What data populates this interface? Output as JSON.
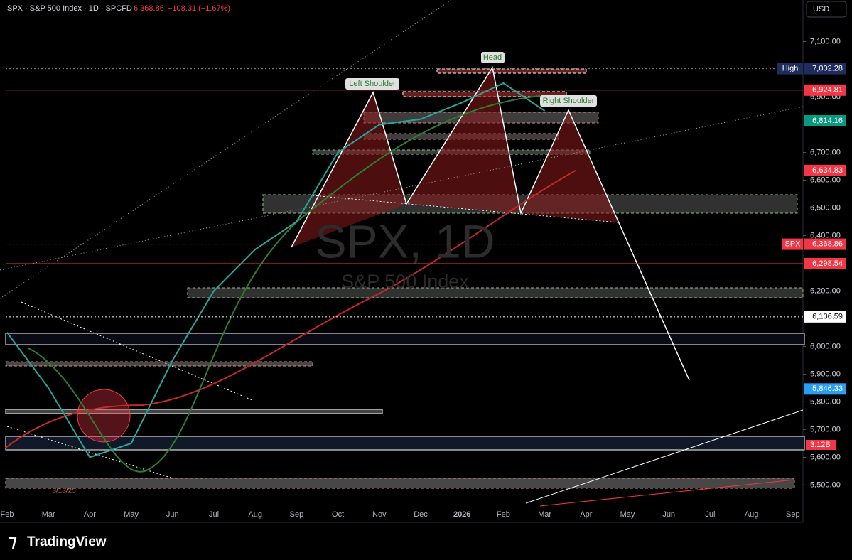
{
  "header": {
    "symbol": "SPX · S&P 500 Index · 1D · SPCFD",
    "price": "6,368.86",
    "change": "−108.31 (−1.67%)",
    "currency": "USD"
  },
  "watermark": {
    "title": "SPX, 1D",
    "subtitle": "S&P 500 Index"
  },
  "annotations": {
    "head": "Head",
    "left_shoulder": "Left Shoulder",
    "right_shoulder": "Right Shoulder",
    "date": "3/13/25",
    "volume": "3.12B"
  },
  "brand": "TradingView",
  "chart_data": {
    "type": "line",
    "color": "#26a69a",
    "categories": [
      "Feb",
      "Mar",
      "Apr",
      "May",
      "Jun",
      "Jul",
      "Aug",
      "Sep",
      "Oct",
      "Nov",
      "Dec",
      "2026",
      "Feb",
      "Mar",
      "Apr",
      "May",
      "Jun",
      "Jul",
      "Aug",
      "Sep"
    ],
    "values": [
      6050,
      5850,
      5600,
      5650,
      5950,
      6200,
      6350,
      6450,
      6700,
      6800,
      6820,
      6880,
      6950,
      6850,
      null,
      null,
      null,
      null,
      null,
      null
    ],
    "ylim": [
      5365,
      7250
    ],
    "yticks": [
      {
        "value": 7100,
        "label": "7,100.00"
      },
      {
        "value": 6900,
        "label": "6,900.00"
      },
      {
        "value": 6700,
        "label": "6,700.00"
      },
      {
        "value": 6600,
        "label": "6,600.00"
      },
      {
        "value": 6500,
        "label": "6,500.00"
      },
      {
        "value": 6400,
        "label": "6,400.00"
      },
      {
        "value": 6200,
        "label": "6,200.00"
      },
      {
        "value": 6000,
        "label": "6,000.00"
      },
      {
        "value": 5900,
        "label": "5,900.00"
      },
      {
        "value": 5800,
        "label": "5,800.00"
      },
      {
        "value": 5700,
        "label": "5,700.00"
      },
      {
        "value": 5600,
        "label": "5,600.00"
      },
      {
        "value": 5500,
        "label": "5,500.00"
      }
    ],
    "levels": [
      {
        "name": "High",
        "value": 7002.28,
        "label": "7,002.28",
        "color": "#1f2d5c",
        "line": "dotted"
      },
      {
        "value": 6924.81,
        "label": "6,924.81",
        "color": "#f23645",
        "line": "solid"
      },
      {
        "value": 6814.16,
        "label": "6,814.16",
        "color": "#089981",
        "line": "none"
      },
      {
        "value": 6634.83,
        "label": "6,634.83",
        "color": "#f23645",
        "line": "none"
      },
      {
        "name": "SPX",
        "value": 6368.86,
        "label": "6,368.86",
        "color": "#f23645",
        "line": "dotted"
      },
      {
        "value": 6298.54,
        "label": "6,298.54",
        "color": "#f23645",
        "line": "solid"
      },
      {
        "value": 6106.59,
        "label": "6,106.59",
        "color": "#ffffff",
        "line": "dotted"
      },
      {
        "value": 5846.33,
        "label": "5,846.33",
        "color": "#2a9df4",
        "line": "none"
      }
    ]
  }
}
